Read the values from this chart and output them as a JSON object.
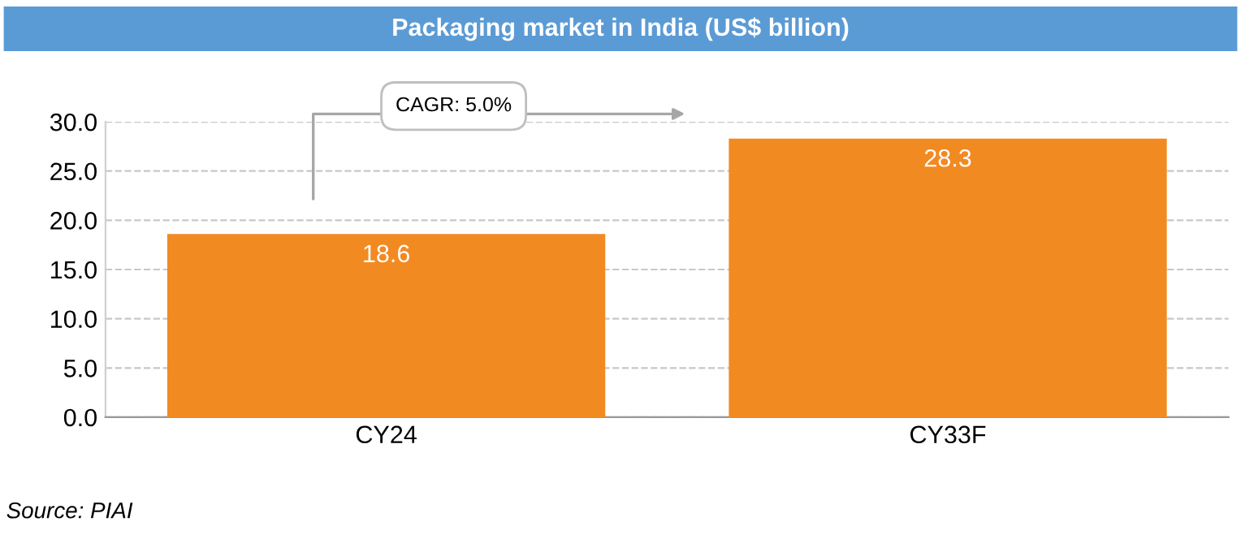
{
  "chart_data": {
    "type": "bar",
    "title": "Packaging market in India (US$ billion)",
    "categories": [
      "CY24",
      "CY33F"
    ],
    "values": [
      18.6,
      28.3
    ],
    "color": "#f28a22",
    "data_labels": true,
    "ylim": [
      0,
      30
    ],
    "yticks": [
      {
        "value": 0,
        "label": "0.0"
      },
      {
        "value": 5,
        "label": "5.0"
      },
      {
        "value": 10,
        "label": "10.0"
      },
      {
        "value": 15,
        "label": "15.0"
      },
      {
        "value": 20,
        "label": "20.0"
      },
      {
        "value": 25,
        "label": "25.0"
      },
      {
        "value": 30,
        "label": "30.0"
      }
    ],
    "grid": "y",
    "legend": false,
    "annotations": [
      "CAGR: 5.0%",
      "Source: PIAI"
    ]
  }
}
